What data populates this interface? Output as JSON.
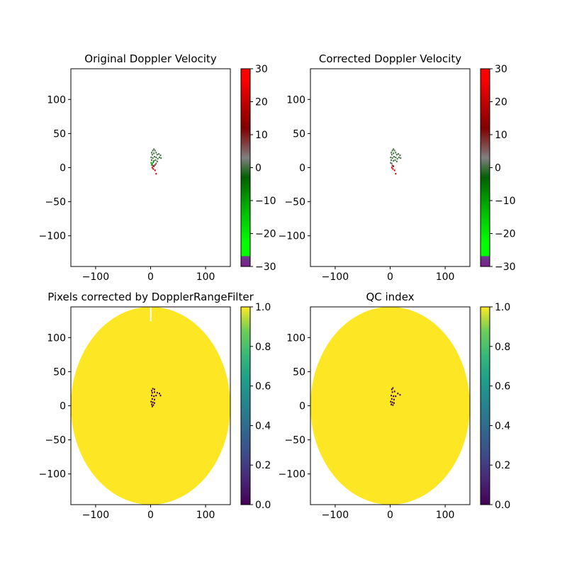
{
  "chart_data": [
    {
      "type": "heatmap",
      "title": "Original Doppler Velocity",
      "xlim": [
        -145,
        145
      ],
      "ylim": [
        -145,
        145
      ],
      "xticks": [
        -100,
        0,
        100
      ],
      "yticks": [
        -100,
        -50,
        0,
        50,
        100
      ],
      "colorbar": {
        "colormap": "doppler-green-gray-red",
        "range": [
          -30,
          30
        ],
        "ticks": [
          30,
          20,
          10,
          0,
          -10,
          -20,
          -30
        ]
      },
      "cells": [
        {
          "x": 2,
          "y": 22,
          "v": 0
        },
        {
          "x": 4,
          "y": 25,
          "v": 0
        },
        {
          "x": 6,
          "y": 27,
          "v": 0
        },
        {
          "x": 8,
          "y": 25,
          "v": 0
        },
        {
          "x": 3,
          "y": 19,
          "v": 0
        },
        {
          "x": 6,
          "y": 21,
          "v": 0
        },
        {
          "x": 10,
          "y": 22,
          "v": 0
        },
        {
          "x": 12,
          "y": 19,
          "v": 0
        },
        {
          "x": 15,
          "y": 20,
          "v": 0
        },
        {
          "x": 18,
          "y": 18,
          "v": 0
        },
        {
          "x": 16,
          "y": 15,
          "v": 0
        },
        {
          "x": 19,
          "y": 14,
          "v": 0
        },
        {
          "x": 1,
          "y": 15,
          "v": 0
        },
        {
          "x": 4,
          "y": 14,
          "v": 0
        },
        {
          "x": 7,
          "y": 16,
          "v": 0
        },
        {
          "x": 10,
          "y": 15,
          "v": 0
        },
        {
          "x": 13,
          "y": 13,
          "v": 0
        },
        {
          "x": 2,
          "y": 11,
          "v": 0
        },
        {
          "x": 6,
          "y": 10,
          "v": 0
        },
        {
          "x": 9,
          "y": 11,
          "v": 0
        },
        {
          "x": 12,
          "y": 9,
          "v": 0
        },
        {
          "x": 1,
          "y": 7,
          "v": -12
        },
        {
          "x": 3,
          "y": 6,
          "v": -14
        },
        {
          "x": 2,
          "y": 4,
          "v": -10
        },
        {
          "x": 5,
          "y": 8,
          "v": -8
        },
        {
          "x": 4,
          "y": 3,
          "v": 8
        },
        {
          "x": 6,
          "y": 2,
          "v": 12
        },
        {
          "x": 8,
          "y": 4,
          "v": 10
        },
        {
          "x": 10,
          "y": 6,
          "v": 6
        },
        {
          "x": 3,
          "y": 0,
          "v": 18
        },
        {
          "x": 5,
          "y": -2,
          "v": 22
        },
        {
          "x": 8,
          "y": -4,
          "v": 20
        },
        {
          "x": 10,
          "y": -9,
          "v": 25
        }
      ]
    },
    {
      "type": "heatmap",
      "title": "Corrected Doppler Velocity",
      "xlim": [
        -145,
        145
      ],
      "ylim": [
        -145,
        145
      ],
      "xticks": [
        -100,
        0,
        100
      ],
      "yticks": [
        -100,
        -50,
        0,
        50,
        100
      ],
      "colorbar": {
        "colormap": "doppler-green-gray-red",
        "range": [
          -30,
          30
        ],
        "ticks": [
          30,
          20,
          10,
          0,
          -10,
          -20,
          -30
        ]
      },
      "cells": [
        {
          "x": 2,
          "y": 22,
          "v": 0
        },
        {
          "x": 4,
          "y": 25,
          "v": 0
        },
        {
          "x": 6,
          "y": 27,
          "v": 0
        },
        {
          "x": 8,
          "y": 25,
          "v": 0
        },
        {
          "x": 3,
          "y": 19,
          "v": 0
        },
        {
          "x": 6,
          "y": 21,
          "v": 0
        },
        {
          "x": 10,
          "y": 22,
          "v": 0
        },
        {
          "x": 12,
          "y": 19,
          "v": 0
        },
        {
          "x": 15,
          "y": 20,
          "v": 0
        },
        {
          "x": 18,
          "y": 18,
          "v": 0
        },
        {
          "x": 16,
          "y": 15,
          "v": 0
        },
        {
          "x": 19,
          "y": 14,
          "v": 0
        },
        {
          "x": 1,
          "y": 15,
          "v": 0
        },
        {
          "x": 4,
          "y": 14,
          "v": 0
        },
        {
          "x": 7,
          "y": 16,
          "v": 0
        },
        {
          "x": 10,
          "y": 15,
          "v": 0
        },
        {
          "x": 13,
          "y": 13,
          "v": 0
        },
        {
          "x": 2,
          "y": 11,
          "v": 0
        },
        {
          "x": 6,
          "y": 10,
          "v": 0
        },
        {
          "x": 9,
          "y": 11,
          "v": 0
        },
        {
          "x": 12,
          "y": 9,
          "v": 0
        },
        {
          "x": 1,
          "y": 7,
          "v": 0
        },
        {
          "x": 3,
          "y": 6,
          "v": 2
        },
        {
          "x": 4,
          "y": 3,
          "v": 8
        },
        {
          "x": 6,
          "y": 2,
          "v": 12
        },
        {
          "x": 3,
          "y": 0,
          "v": 18
        },
        {
          "x": 5,
          "y": -2,
          "v": 22
        },
        {
          "x": 8,
          "y": -4,
          "v": 20
        },
        {
          "x": 10,
          "y": -9,
          "v": 25
        }
      ]
    },
    {
      "type": "heatmap",
      "title": "Pixels corrected by DopplerRangeFilter",
      "xlim": [
        -145,
        145
      ],
      "ylim": [
        -145,
        145
      ],
      "xticks": [
        -100,
        0,
        100
      ],
      "yticks": [
        -100,
        -50,
        0,
        50,
        100
      ],
      "background_disk": {
        "rx": 145,
        "ry": 145,
        "value": 1.0,
        "gap_at_top": true
      },
      "colorbar": {
        "colormap": "viridis",
        "range": [
          0,
          1
        ],
        "ticks": [
          1.0,
          0.8,
          0.6,
          0.4,
          0.2,
          0.0
        ]
      },
      "cells": [
        {
          "x": 2,
          "y": 22,
          "v": 0
        },
        {
          "x": 4,
          "y": 25,
          "v": 0
        },
        {
          "x": 7,
          "y": 24,
          "v": 0
        },
        {
          "x": 3,
          "y": 19,
          "v": 0
        },
        {
          "x": 7,
          "y": 20,
          "v": 0
        },
        {
          "x": 12,
          "y": 19,
          "v": 0
        },
        {
          "x": 16,
          "y": 18,
          "v": 0
        },
        {
          "x": 18,
          "y": 15,
          "v": 0
        },
        {
          "x": 2,
          "y": 15,
          "v": 0
        },
        {
          "x": 6,
          "y": 14,
          "v": 0
        },
        {
          "x": 10,
          "y": 15,
          "v": 0
        },
        {
          "x": 3,
          "y": 10,
          "v": 0
        },
        {
          "x": 7,
          "y": 9,
          "v": 0
        },
        {
          "x": 1,
          "y": 6,
          "v": 0
        },
        {
          "x": 4,
          "y": 5,
          "v": 0
        },
        {
          "x": 7,
          "y": 4,
          "v": 0
        },
        {
          "x": 2,
          "y": 2,
          "v": 0
        },
        {
          "x": 5,
          "y": 1,
          "v": 0
        },
        {
          "x": 3,
          "y": -1,
          "v": 0
        }
      ]
    },
    {
      "type": "heatmap",
      "title": "QC index",
      "xlim": [
        -145,
        145
      ],
      "ylim": [
        -145,
        145
      ],
      "xticks": [
        -100,
        0,
        100
      ],
      "yticks": [
        -100,
        -50,
        0,
        50,
        100
      ],
      "background_disk": {
        "rx": 145,
        "ry": 145,
        "value": 1.0,
        "gap_at_top": false
      },
      "colorbar": {
        "colormap": "viridis",
        "range": [
          0,
          1
        ],
        "ticks": [
          1.0,
          0.8,
          0.6,
          0.4,
          0.2,
          0.0
        ]
      },
      "cells": [
        {
          "x": 3,
          "y": 24,
          "v": 0
        },
        {
          "x": 5,
          "y": 26,
          "v": 0
        },
        {
          "x": 4,
          "y": 20,
          "v": 0
        },
        {
          "x": 8,
          "y": 21,
          "v": 0
        },
        {
          "x": 14,
          "y": 18,
          "v": 0
        },
        {
          "x": 18,
          "y": 16,
          "v": 0
        },
        {
          "x": 2,
          "y": 15,
          "v": 0
        },
        {
          "x": 6,
          "y": 14,
          "v": 0
        },
        {
          "x": 10,
          "y": 14,
          "v": 0
        },
        {
          "x": 3,
          "y": 10,
          "v": 0
        },
        {
          "x": 7,
          "y": 9,
          "v": 0
        },
        {
          "x": 1,
          "y": 6,
          "v": 0
        },
        {
          "x": 4,
          "y": 5,
          "v": 0
        },
        {
          "x": 7,
          "y": 4,
          "v": 0
        },
        {
          "x": 2,
          "y": 2,
          "v": 0
        },
        {
          "x": 5,
          "y": 1,
          "v": 0
        }
      ]
    }
  ]
}
